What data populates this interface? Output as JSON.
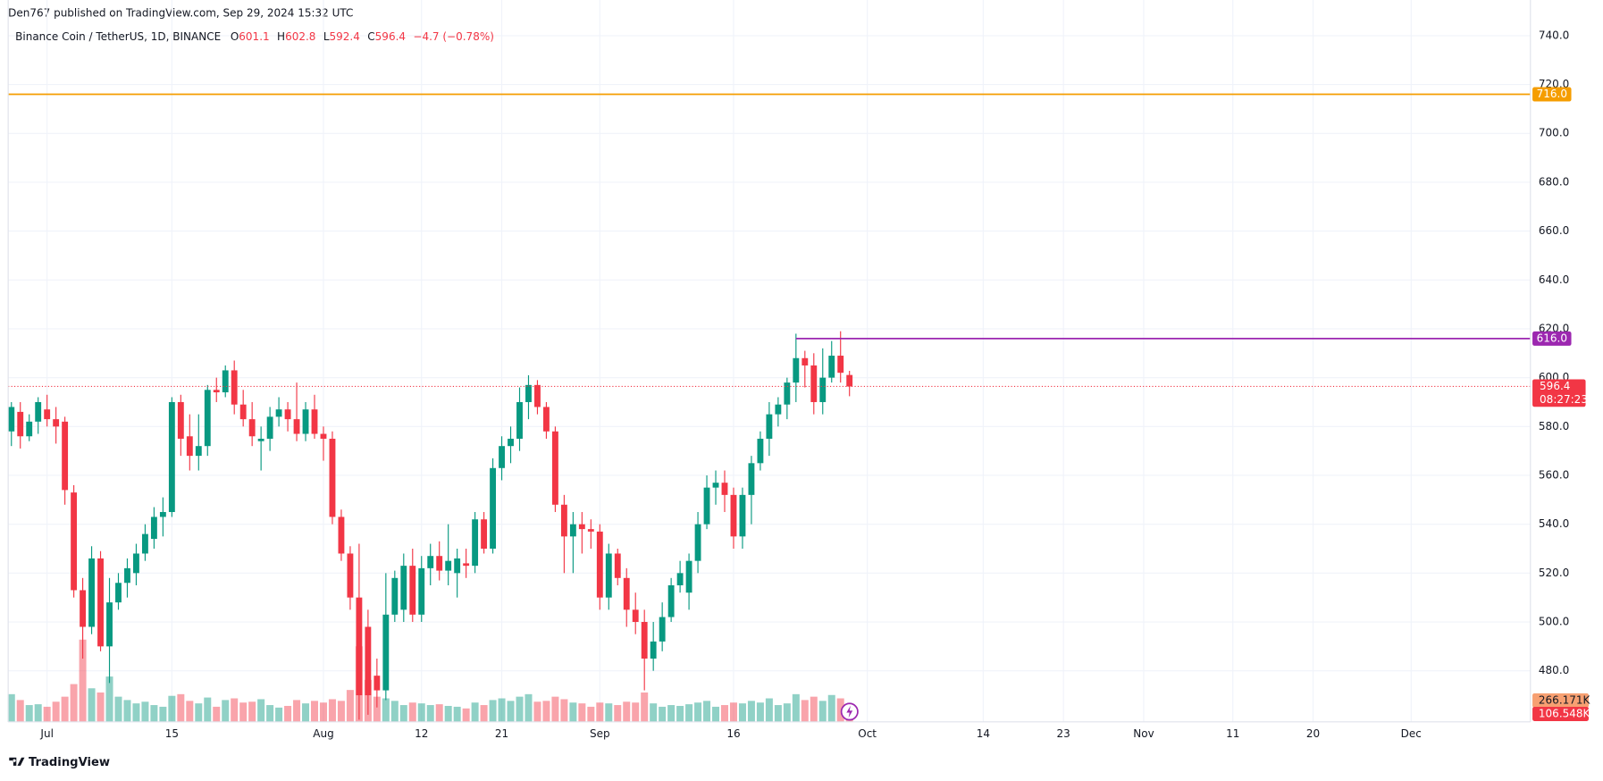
{
  "header": {
    "published": "Den767 published on TradingView.com, Sep 29, 2024 15:32 UTC"
  },
  "footer": {
    "brand": "TradingView"
  },
  "chart_data": {
    "type": "candlestick",
    "title": "Binance Coin / TetherUS, 1D, BINANCE",
    "ohlc_letters": [
      "O",
      "H",
      "L",
      "C"
    ],
    "change_label": "−4.7 (−0.78%)",
    "countdown": "08:27:23",
    "up_color": "#089981",
    "down_color": "#f23645",
    "grid": true,
    "x": [
      "2024-06-27",
      "2024-06-28",
      "2024-06-29",
      "2024-06-30",
      "2024-07-01",
      "2024-07-02",
      "2024-07-03",
      "2024-07-04",
      "2024-07-05",
      "2024-07-06",
      "2024-07-07",
      "2024-07-08",
      "2024-07-09",
      "2024-07-10",
      "2024-07-11",
      "2024-07-12",
      "2024-07-13",
      "2024-07-14",
      "2024-07-15",
      "2024-07-16",
      "2024-07-17",
      "2024-07-18",
      "2024-07-19",
      "2024-07-20",
      "2024-07-21",
      "2024-07-22",
      "2024-07-23",
      "2024-07-24",
      "2024-07-25",
      "2024-07-26",
      "2024-07-27",
      "2024-07-28",
      "2024-07-29",
      "2024-07-30",
      "2024-07-31",
      "2024-08-01",
      "2024-08-02",
      "2024-08-03",
      "2024-08-04",
      "2024-08-05",
      "2024-08-06",
      "2024-08-07",
      "2024-08-08",
      "2024-08-09",
      "2024-08-10",
      "2024-08-11",
      "2024-08-12",
      "2024-08-13",
      "2024-08-14",
      "2024-08-15",
      "2024-08-16",
      "2024-08-17",
      "2024-08-18",
      "2024-08-19",
      "2024-08-20",
      "2024-08-21",
      "2024-08-22",
      "2024-08-23",
      "2024-08-24",
      "2024-08-25",
      "2024-08-26",
      "2024-08-27",
      "2024-08-28",
      "2024-08-29",
      "2024-08-30",
      "2024-08-31",
      "2024-09-01",
      "2024-09-02",
      "2024-09-03",
      "2024-09-04",
      "2024-09-05",
      "2024-09-06",
      "2024-09-07",
      "2024-09-08",
      "2024-09-09",
      "2024-09-10",
      "2024-09-11",
      "2024-09-12",
      "2024-09-13",
      "2024-09-14",
      "2024-09-15",
      "2024-09-16",
      "2024-09-17",
      "2024-09-18",
      "2024-09-19",
      "2024-09-20",
      "2024-09-21",
      "2024-09-22",
      "2024-09-23",
      "2024-09-24",
      "2024-09-25",
      "2024-09-26",
      "2024-09-27",
      "2024-09-28",
      "2024-09-29"
    ],
    "open": [
      578,
      586,
      576,
      582,
      587,
      583,
      582,
      553,
      513,
      498,
      526,
      490,
      508,
      516,
      520,
      528,
      534,
      543,
      545,
      590,
      576,
      568,
      572,
      595,
      594,
      603,
      589,
      583,
      574,
      575,
      584,
      587,
      583,
      577,
      587,
      577,
      575,
      543,
      528,
      510,
      498,
      478,
      472,
      503,
      505,
      523,
      503,
      522,
      527,
      521,
      520,
      524,
      523,
      542,
      530,
      563,
      572,
      575,
      590,
      597,
      588,
      578,
      548,
      535,
      540,
      538,
      537,
      510,
      528,
      518,
      505,
      500,
      485,
      492,
      502,
      515,
      512,
      525,
      540,
      555,
      557,
      552,
      535,
      552,
      565,
      575,
      585,
      589,
      598,
      608,
      605,
      590,
      600,
      609,
      601.1
    ],
    "high": [
      590,
      590,
      585,
      592,
      593,
      588,
      584,
      556,
      518,
      531,
      529,
      518,
      520,
      526,
      532,
      540,
      547,
      551,
      592,
      593,
      585,
      585,
      597,
      600,
      605,
      607,
      595,
      590,
      580,
      588,
      592,
      590,
      598,
      590,
      593,
      580,
      578,
      546,
      531,
      532,
      505,
      485,
      520,
      521,
      528,
      530,
      527,
      532,
      533,
      540,
      530,
      530,
      545,
      545,
      567,
      576,
      580,
      596,
      601,
      599,
      590,
      580,
      552,
      545,
      545,
      542,
      540,
      532,
      530,
      522,
      512,
      505,
      500,
      508,
      518,
      525,
      528,
      545,
      560,
      562,
      562,
      555,
      555,
      568,
      578,
      590,
      592,
      600,
      618,
      611,
      610,
      612,
      615,
      619,
      602.8
    ],
    "low": [
      572,
      571,
      574,
      577,
      580,
      573,
      548,
      510,
      485,
      495,
      488,
      475,
      505,
      510,
      515,
      525,
      530,
      535,
      543,
      568,
      562,
      562,
      568,
      590,
      592,
      585,
      580,
      572,
      562,
      570,
      580,
      578,
      574,
      574,
      575,
      566,
      540,
      525,
      505,
      460,
      462,
      465,
      468,
      500,
      500,
      500,
      500,
      515,
      517,
      515,
      510,
      518,
      520,
      528,
      528,
      558,
      565,
      570,
      583,
      585,
      575,
      545,
      520,
      520,
      528,
      530,
      505,
      505,
      515,
      498,
      495,
      472,
      480,
      488,
      500,
      512,
      505,
      520,
      538,
      548,
      545,
      530,
      530,
      540,
      562,
      568,
      580,
      583,
      590,
      596,
      585,
      585,
      598,
      598,
      592.4
    ],
    "close": [
      588,
      576,
      582,
      590,
      583,
      580,
      554,
      513,
      498,
      526,
      490,
      508,
      516,
      522,
      528,
      536,
      543,
      545,
      590,
      575,
      568,
      572,
      595,
      594,
      603,
      589,
      583,
      576,
      575,
      584,
      587,
      583,
      577,
      587,
      577,
      575,
      543,
      528,
      510,
      470,
      470,
      472,
      503,
      518,
      523,
      503,
      522,
      527,
      521,
      525,
      526,
      523,
      542,
      530,
      563,
      572,
      575,
      590,
      597,
      588,
      578,
      548,
      535,
      540,
      538,
      537,
      510,
      528,
      518,
      505,
      500,
      485,
      492,
      502,
      515,
      520,
      525,
      540,
      555,
      557,
      552,
      535,
      552,
      565,
      575,
      585,
      589,
      598,
      608,
      605,
      590,
      600,
      609,
      602,
      596.4
    ],
    "volume": [
      330000,
      260000,
      200000,
      210000,
      180000,
      240000,
      300000,
      450000,
      980000,
      400000,
      350000,
      540000,
      300000,
      260000,
      220000,
      240000,
      200000,
      180000,
      310000,
      330000,
      250000,
      220000,
      290000,
      180000,
      260000,
      280000,
      230000,
      240000,
      270000,
      200000,
      170000,
      190000,
      260000,
      220000,
      250000,
      230000,
      270000,
      250000,
      380000,
      900000,
      500000,
      300000,
      280000,
      250000,
      200000,
      230000,
      220000,
      200000,
      210000,
      190000,
      180000,
      160000,
      230000,
      200000,
      260000,
      280000,
      250000,
      300000,
      330000,
      240000,
      250000,
      300000,
      270000,
      230000,
      220000,
      180000,
      230000,
      220000,
      200000,
      240000,
      230000,
      350000,
      220000,
      180000,
      200000,
      190000,
      210000,
      230000,
      250000,
      180000,
      200000,
      230000,
      220000,
      250000,
      230000,
      280000,
      200000,
      220000,
      330000,
      260000,
      300000,
      250000,
      320000,
      280000,
      106548
    ],
    "volume_ma_label": "266.171K",
    "volume_last_label": "106.548K",
    "volume_ma_color": "#f7a072",
    "vlim": [
      0,
      8600000
    ],
    "xlim": [
      "2024-06-26T15:20",
      "2024-12-14T09:00"
    ],
    "xticks": [
      {
        "value": "2024-07-01",
        "label": "Jul"
      },
      {
        "value": "2024-07-15",
        "label": "15"
      },
      {
        "value": "2024-08-01",
        "label": "Aug"
      },
      {
        "value": "2024-08-12",
        "label": "12"
      },
      {
        "value": "2024-08-21",
        "label": "21"
      },
      {
        "value": "2024-09-01",
        "label": "Sep"
      },
      {
        "value": "2024-09-16",
        "label": "16"
      },
      {
        "value": "2024-10-01",
        "label": "Oct"
      },
      {
        "value": "2024-10-14",
        "label": "14"
      },
      {
        "value": "2024-10-23",
        "label": "23"
      },
      {
        "value": "2024-11-01",
        "label": "Nov"
      },
      {
        "value": "2024-11-11",
        "label": "11"
      },
      {
        "value": "2024-11-20",
        "label": "20"
      },
      {
        "value": "2024-12-01",
        "label": "Dec"
      }
    ],
    "ylim": [
      459.1,
      754.6
    ],
    "yticks": [
      {
        "value": 480,
        "label": "480.0"
      },
      {
        "value": 500,
        "label": "500.0"
      },
      {
        "value": 520,
        "label": "520.0"
      },
      {
        "value": 540,
        "label": "540.0"
      },
      {
        "value": 560,
        "label": "560.0"
      },
      {
        "value": 580,
        "label": "580.0"
      },
      {
        "value": 600,
        "label": "600.0"
      },
      {
        "value": 620,
        "label": "620.0"
      },
      {
        "value": 640,
        "label": "640.0"
      },
      {
        "value": 660,
        "label": "660.0"
      },
      {
        "value": 680,
        "label": "680.0"
      },
      {
        "value": 700,
        "label": "700.0"
      },
      {
        "value": 720,
        "label": "720.0"
      },
      {
        "value": 740,
        "label": "740.0"
      }
    ],
    "levels": [
      {
        "price": {
          "value": 716,
          "label": "716.0"
        },
        "color": "#f59d00"
      },
      {
        "price": {
          "value": 616,
          "label": "616.0"
        },
        "color": "#9c27b0",
        "from": "2024-09-23"
      }
    ]
  }
}
